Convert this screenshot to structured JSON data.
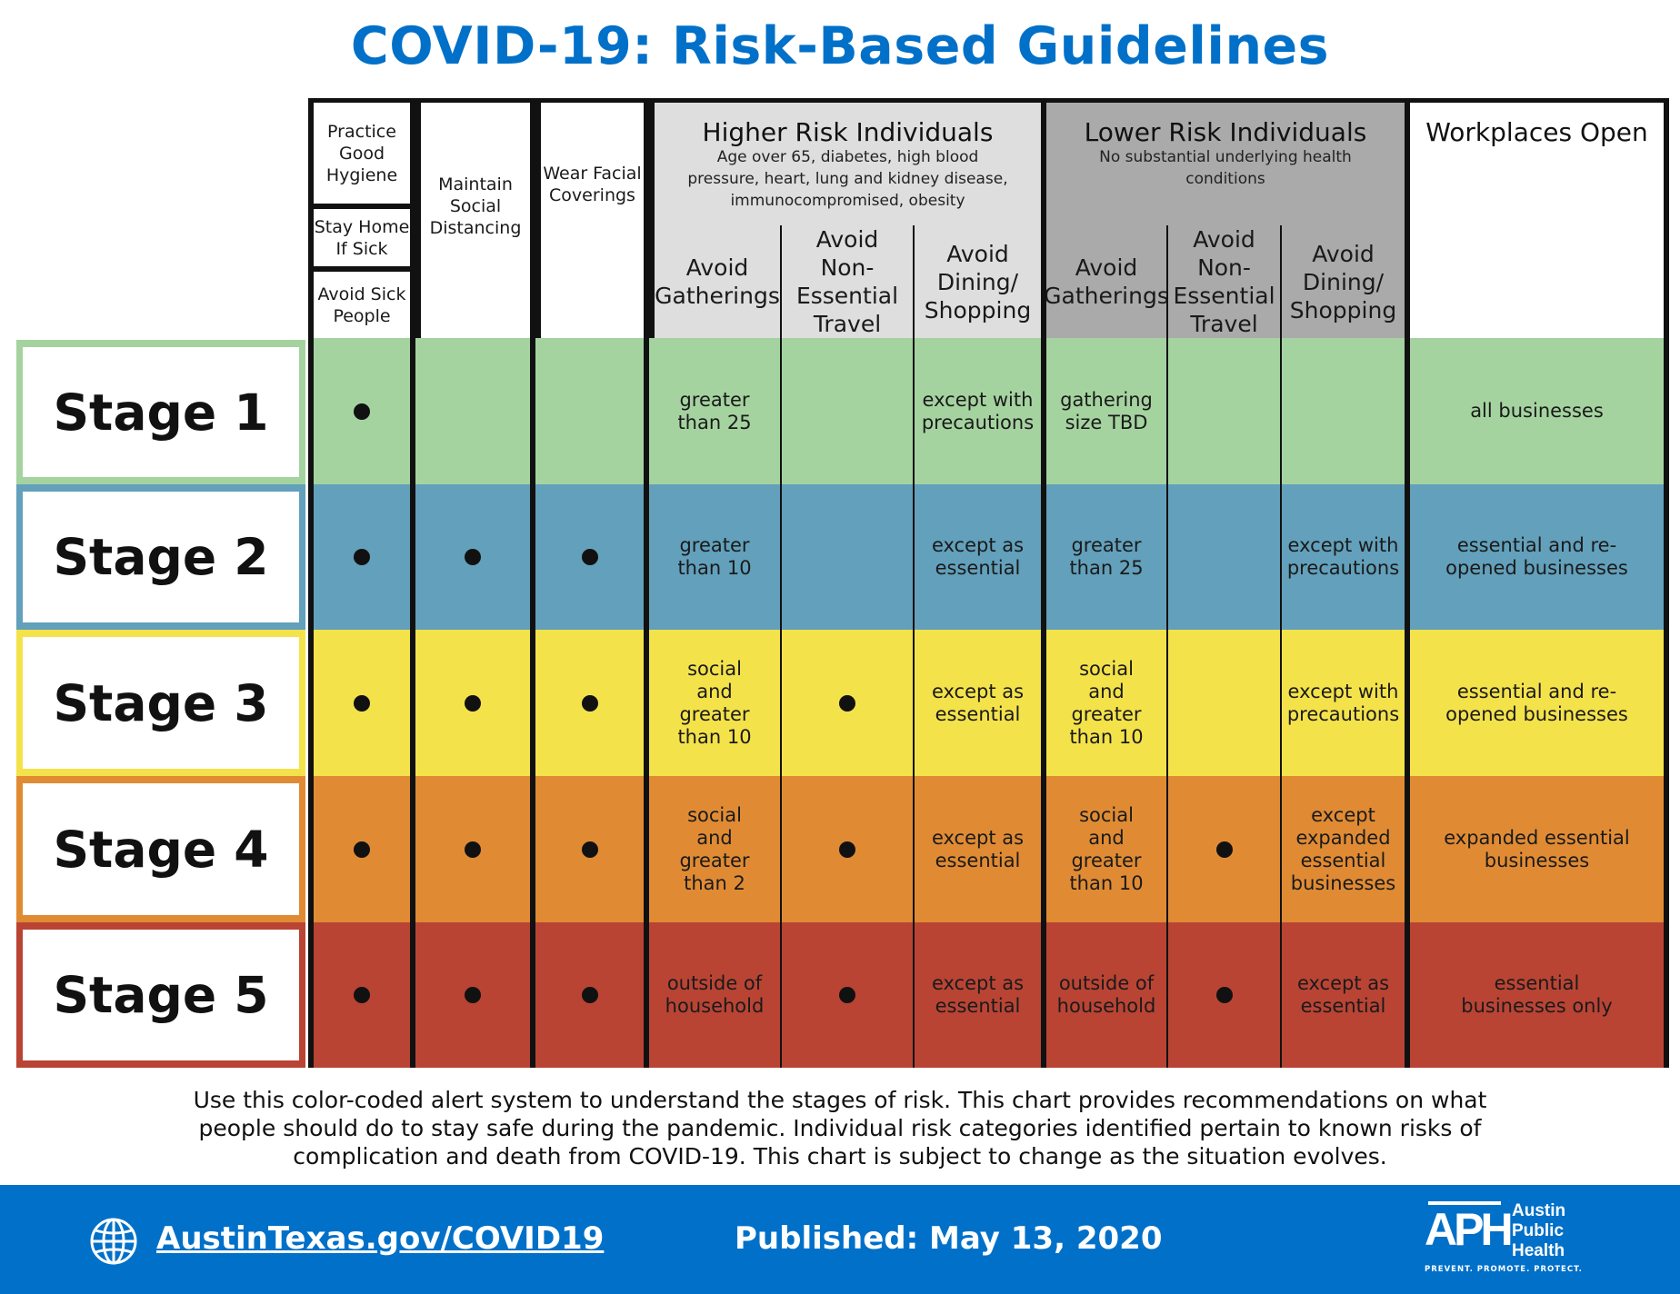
{
  "title": "COVID-19: Risk-Based Guidelines",
  "colors": {
    "brand_blue": "#0070c9",
    "stage1": "#a5d3a0",
    "stage2": "#62a0bb",
    "stage3": "#f4e24b",
    "stage4": "#e08b34",
    "stage5": "#b94434",
    "higher_risk_header": "#dedede",
    "lower_risk_header": "#aaaaaa"
  },
  "header": {
    "hygiene": "Practice Good Hygiene",
    "stay_home": "Stay Home If Sick",
    "avoid_sick": "Avoid Sick People",
    "social_distancing": "Maintain Social Distancing",
    "facial_coverings": "Wear Facial Coverings",
    "higher_risk": {
      "title": "Higher Risk Individuals",
      "subtitle": "Age over 65, diabetes, high blood\npressure, heart, lung and kidney disease,\nimmunocompromised, obesity",
      "avoid_gatherings": "Avoid\nGatherings",
      "avoid_travel": "Avoid\nNon-\nEssential\nTravel",
      "avoid_dining": "Avoid\nDining/\nShopping"
    },
    "lower_risk": {
      "title": "Lower Risk Individuals",
      "subtitle": "No substantial underlying health\nconditions",
      "avoid_gatherings": "Avoid\nGatherings",
      "avoid_travel": "Avoid\nNon-\nEssential\nTravel",
      "avoid_dining": "Avoid\nDining/\nShopping"
    },
    "workplaces": "Workplaces Open"
  },
  "stages": [
    {
      "label": "Stage 1",
      "hygiene": true,
      "distancing": false,
      "coverings": false,
      "hr_gatherings": "greater\nthan 25",
      "hr_travel": false,
      "hr_dining": "except with\nprecautions",
      "lr_gatherings": "gathering\nsize TBD",
      "lr_travel": false,
      "lr_dining": "",
      "workplaces": "all businesses"
    },
    {
      "label": "Stage 2",
      "hygiene": true,
      "distancing": true,
      "coverings": true,
      "hr_gatherings": "greater\nthan 10",
      "hr_travel": false,
      "hr_dining": "except as\nessential",
      "lr_gatherings": "greater\nthan 25",
      "lr_travel": false,
      "lr_dining": "except with\nprecautions",
      "workplaces": "essential and re-\nopened businesses"
    },
    {
      "label": "Stage 3",
      "hygiene": true,
      "distancing": true,
      "coverings": true,
      "hr_gatherings": "social\nand\ngreater\nthan 10",
      "hr_travel": true,
      "hr_dining": "except as\nessential",
      "lr_gatherings": "social\nand\ngreater\nthan 10",
      "lr_travel": false,
      "lr_dining": "except with\nprecautions",
      "workplaces": "essential and re-\nopened businesses"
    },
    {
      "label": "Stage 4",
      "hygiene": true,
      "distancing": true,
      "coverings": true,
      "hr_gatherings": "social\nand\ngreater\nthan 2",
      "hr_travel": true,
      "hr_dining": "except as\nessential",
      "lr_gatherings": "social\nand\ngreater\nthan 10",
      "lr_travel": true,
      "lr_dining": "except\nexpanded\nessential\nbusinesses",
      "workplaces": "expanded essential\nbusinesses"
    },
    {
      "label": "Stage 5",
      "hygiene": true,
      "distancing": true,
      "coverings": true,
      "hr_gatherings": "outside of\nhousehold",
      "hr_travel": true,
      "hr_dining": "except as\nessential",
      "lr_gatherings": "outside of\nhousehold",
      "lr_travel": true,
      "lr_dining": "except as\nessential",
      "workplaces": "essential\nbusinesses only"
    }
  ],
  "footnote": "Use this color-coded alert system to understand the stages of risk. This chart provides recommendations on what\npeople should do to stay safe during the pandemic. Individual risk categories identified pertain to known risks of\ncomplication and death from COVID-19. This chart is subject to change as the situation evolves.",
  "footer": {
    "link": "AustinTexas.gov/COVID19",
    "published": "Published: May 13, 2020",
    "logo_letters": "APH",
    "logo_name": "Austin\nPublic\nHealth",
    "logo_tagline": "PREVENT. PROMOTE. PROTECT.",
    "globe_icon": "globe-icon"
  }
}
